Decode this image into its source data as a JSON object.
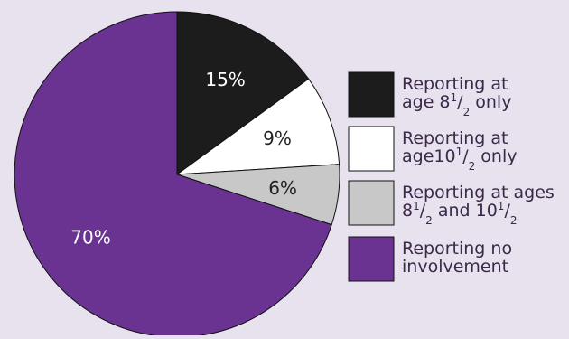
{
  "chart_data": {
    "type": "pie",
    "start_angle_deg": 0,
    "direction": "clockwise",
    "slices": [
      {
        "label": "Reporting at age 8½ only",
        "value": 15,
        "display": "15%",
        "color": "#1c1c1c",
        "text_color": "#ffffff"
      },
      {
        "label": "Reporting at age10½ only",
        "value": 9,
        "display": "9%",
        "color": "#ffffff",
        "text_color": "#222222"
      },
      {
        "label": "Reporting at ages 8½ and 10½",
        "value": 6,
        "display": "6%",
        "color": "#c8c8c8",
        "text_color": "#222222"
      },
      {
        "label": "Reporting no involvement",
        "value": 70,
        "display": "70%",
        "color": "#6a3392",
        "text_color": "#ffffff"
      }
    ],
    "legend": [
      {
        "lines": [
          [
            {
              "t": "Reporting at"
            }
          ],
          [
            {
              "t": "age 8"
            },
            {
              "t": "1",
              "sup": true
            },
            {
              "t": "/"
            },
            {
              "t": "2",
              "sub": true
            },
            {
              "t": " only"
            }
          ]
        ]
      },
      {
        "lines": [
          [
            {
              "t": "Reporting at"
            }
          ],
          [
            {
              "t": "age10"
            },
            {
              "t": "1",
              "sup": true
            },
            {
              "t": "/"
            },
            {
              "t": "2",
              "sub": true
            },
            {
              "t": " only"
            }
          ]
        ]
      },
      {
        "lines": [
          [
            {
              "t": "Reporting at ages"
            }
          ],
          [
            {
              "t": "8"
            },
            {
              "t": "1",
              "sup": true
            },
            {
              "t": "/"
            },
            {
              "t": "2",
              "sub": true
            },
            {
              "t": " and 10"
            },
            {
              "t": "1",
              "sup": true
            },
            {
              "t": "/"
            },
            {
              "t": "2",
              "sub": true
            }
          ]
        ]
      },
      {
        "lines": [
          [
            {
              "t": "Reporting no"
            }
          ],
          [
            {
              "t": "involvement"
            }
          ]
        ]
      }
    ],
    "legend_position": "right"
  }
}
